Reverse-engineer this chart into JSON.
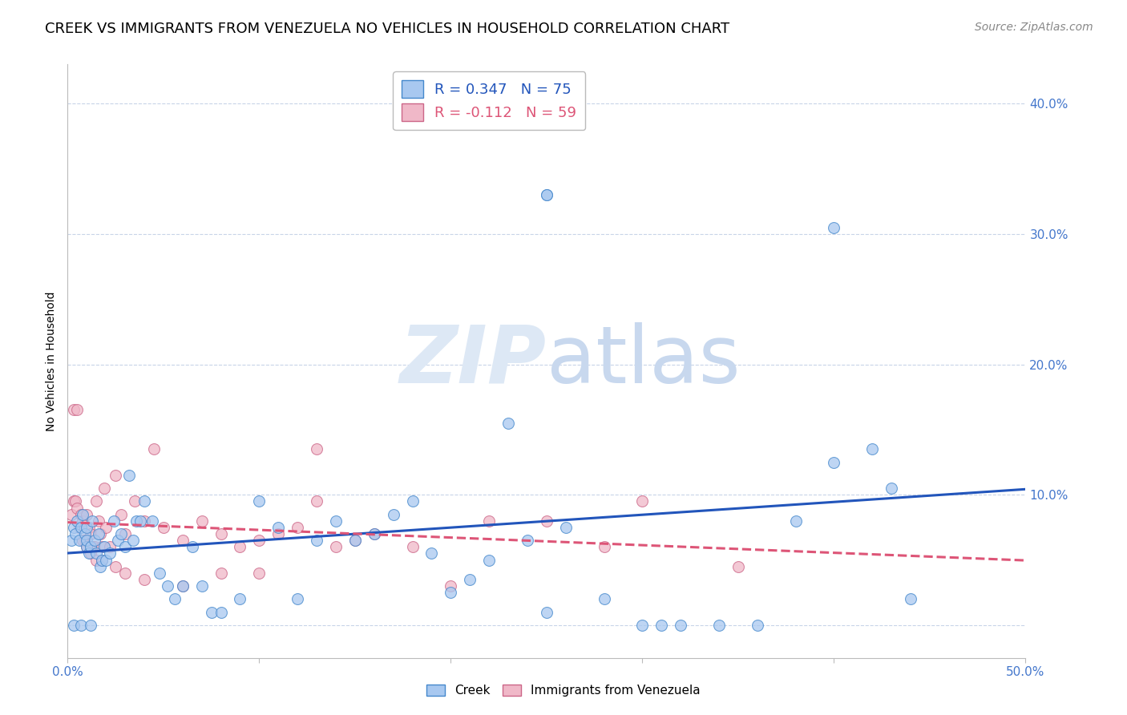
{
  "title": "CREEK VS IMMIGRANTS FROM VENEZUELA NO VEHICLES IN HOUSEHOLD CORRELATION CHART",
  "source": "Source: ZipAtlas.com",
  "ylabel": "No Vehicles in Household",
  "x_min": 0.0,
  "x_max": 0.5,
  "y_min": -0.025,
  "y_max": 0.43,
  "x_ticks": [
    0.0,
    0.1,
    0.2,
    0.3,
    0.4,
    0.5
  ],
  "x_tick_labels": [
    "0.0%",
    "",
    "",
    "",
    "",
    "50.0%"
  ],
  "y_ticks": [
    0.0,
    0.1,
    0.2,
    0.3,
    0.4
  ],
  "y_tick_labels_right": [
    "",
    "10.0%",
    "20.0%",
    "30.0%",
    "40.0%"
  ],
  "background_color": "#ffffff",
  "grid_color": "#c8d4e8",
  "creek_color": "#a8c8f0",
  "creek_edge_color": "#4488cc",
  "venezuela_color": "#f0b8c8",
  "venezuela_edge_color": "#cc6688",
  "creek_R": 0.347,
  "creek_N": 75,
  "venezuela_R": -0.112,
  "venezuela_N": 59,
  "creek_line_color": "#2255bb",
  "venezuela_line_color": "#dd5577",
  "tick_color": "#4477cc",
  "watermark_color": "#dde8f5",
  "title_fontsize": 13,
  "axis_label_fontsize": 10,
  "tick_fontsize": 11,
  "legend_fontsize": 13,
  "source_fontsize": 10,
  "marker_size": 100,
  "line_width": 2.2,
  "creek_x": [
    0.002,
    0.003,
    0.004,
    0.005,
    0.006,
    0.007,
    0.008,
    0.009,
    0.01,
    0.01,
    0.01,
    0.011,
    0.012,
    0.013,
    0.014,
    0.015,
    0.016,
    0.017,
    0.018,
    0.019,
    0.02,
    0.022,
    0.024,
    0.026,
    0.028,
    0.03,
    0.032,
    0.034,
    0.036,
    0.038,
    0.04,
    0.044,
    0.048,
    0.052,
    0.056,
    0.06,
    0.065,
    0.07,
    0.075,
    0.08,
    0.09,
    0.1,
    0.11,
    0.12,
    0.13,
    0.14,
    0.15,
    0.16,
    0.17,
    0.18,
    0.19,
    0.2,
    0.21,
    0.22,
    0.23,
    0.24,
    0.25,
    0.26,
    0.28,
    0.3,
    0.31,
    0.32,
    0.34,
    0.36,
    0.38,
    0.4,
    0.42,
    0.43,
    0.44,
    0.25,
    0.25,
    0.4,
    0.003,
    0.007,
    0.012
  ],
  "creek_y": [
    0.065,
    0.075,
    0.07,
    0.08,
    0.065,
    0.075,
    0.085,
    0.07,
    0.075,
    0.06,
    0.065,
    0.055,
    0.06,
    0.08,
    0.065,
    0.055,
    0.07,
    0.045,
    0.05,
    0.06,
    0.05,
    0.055,
    0.08,
    0.065,
    0.07,
    0.06,
    0.115,
    0.065,
    0.08,
    0.08,
    0.095,
    0.08,
    0.04,
    0.03,
    0.02,
    0.03,
    0.06,
    0.03,
    0.01,
    0.01,
    0.02,
    0.095,
    0.075,
    0.02,
    0.065,
    0.08,
    0.065,
    0.07,
    0.085,
    0.095,
    0.055,
    0.025,
    0.035,
    0.05,
    0.155,
    0.065,
    0.01,
    0.075,
    0.02,
    0.0,
    0.0,
    0.0,
    0.0,
    0.0,
    0.08,
    0.125,
    0.135,
    0.105,
    0.02,
    0.33,
    0.33,
    0.305,
    0.0,
    0.0,
    0.0
  ],
  "venezuela_x": [
    0.002,
    0.003,
    0.004,
    0.005,
    0.006,
    0.007,
    0.008,
    0.009,
    0.01,
    0.011,
    0.012,
    0.013,
    0.014,
    0.015,
    0.016,
    0.017,
    0.018,
    0.019,
    0.02,
    0.022,
    0.025,
    0.028,
    0.03,
    0.035,
    0.04,
    0.045,
    0.05,
    0.06,
    0.07,
    0.08,
    0.09,
    0.1,
    0.11,
    0.12,
    0.13,
    0.14,
    0.15,
    0.16,
    0.18,
    0.2,
    0.22,
    0.25,
    0.28,
    0.3,
    0.35,
    0.003,
    0.005,
    0.008,
    0.01,
    0.012,
    0.015,
    0.018,
    0.025,
    0.03,
    0.04,
    0.06,
    0.08,
    0.1,
    0.13
  ],
  "venezuela_y": [
    0.085,
    0.095,
    0.095,
    0.09,
    0.075,
    0.085,
    0.08,
    0.065,
    0.085,
    0.075,
    0.07,
    0.06,
    0.06,
    0.095,
    0.08,
    0.07,
    0.06,
    0.105,
    0.075,
    0.06,
    0.115,
    0.085,
    0.07,
    0.095,
    0.08,
    0.135,
    0.075,
    0.065,
    0.08,
    0.07,
    0.06,
    0.065,
    0.07,
    0.075,
    0.095,
    0.06,
    0.065,
    0.07,
    0.06,
    0.03,
    0.08,
    0.08,
    0.06,
    0.095,
    0.045,
    0.165,
    0.165,
    0.065,
    0.06,
    0.055,
    0.05,
    0.05,
    0.045,
    0.04,
    0.035,
    0.03,
    0.04,
    0.04,
    0.135
  ]
}
